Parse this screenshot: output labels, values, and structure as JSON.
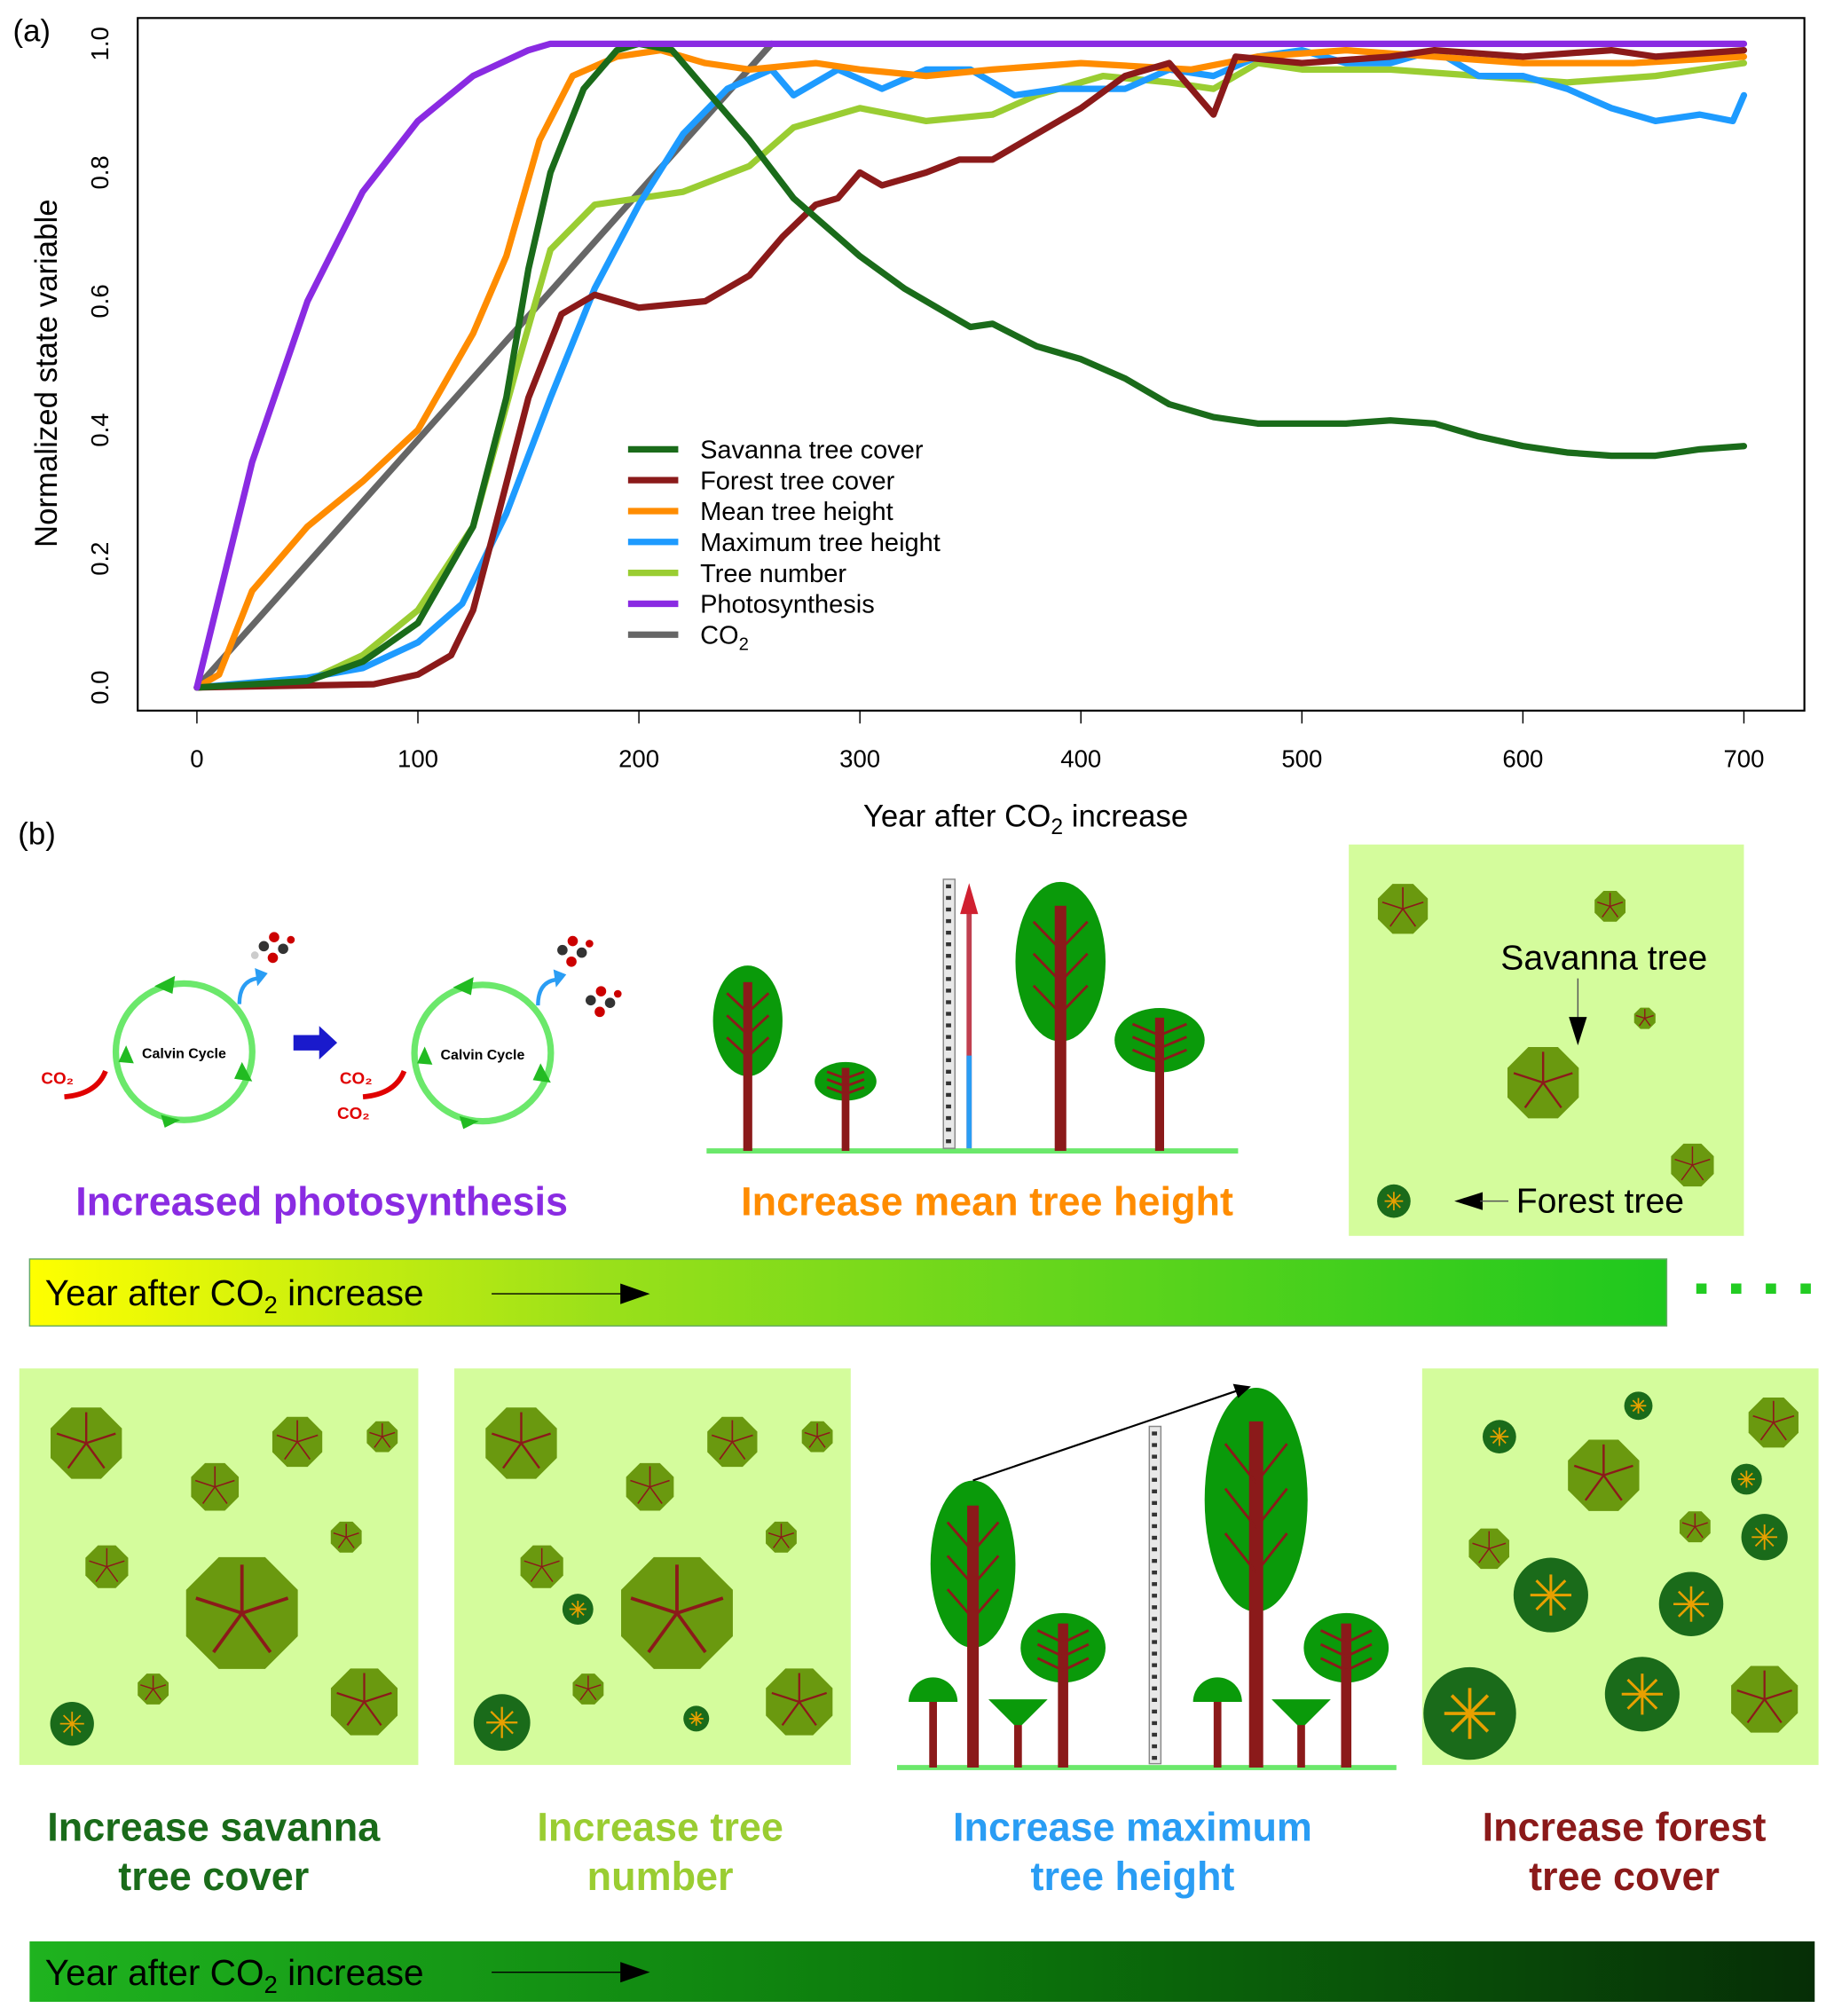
{
  "panel_labels": {
    "a": "(a)",
    "b": "(b)"
  },
  "chart_data": {
    "type": "line",
    "title": "",
    "xlabel": {
      "pre": "Year after CO",
      "sub": "2",
      "post": " increase"
    },
    "ylabel": "Normalized state variable",
    "xlim": [
      0,
      700
    ],
    "ylim": [
      0,
      1
    ],
    "xticks": [
      0,
      100,
      200,
      300,
      400,
      500,
      600,
      700
    ],
    "xtick_labels": [
      "0",
      "100",
      "200",
      "300",
      "400",
      "500",
      "600",
      "700"
    ],
    "yticks": [
      0,
      0.2,
      0.4,
      0.6,
      0.8,
      1.0
    ],
    "ytick_labels": [
      "0.0",
      "0.2",
      "0.4",
      "0.6",
      "0.8",
      "1.0"
    ],
    "grid": false,
    "legend_position": "center",
    "series": [
      {
        "name": "Savanna tree cover",
        "color": "#1a6b1a",
        "x": [
          0,
          50,
          75,
          100,
          125,
          140,
          150,
          160,
          175,
          190,
          200,
          215,
          230,
          250,
          270,
          290,
          300,
          320,
          340,
          350,
          360,
          380,
          400,
          420,
          440,
          460,
          480,
          500,
          520,
          540,
          560,
          580,
          600,
          620,
          640,
          660,
          680,
          700
        ],
        "y": [
          0,
          0.01,
          0.04,
          0.1,
          0.25,
          0.45,
          0.65,
          0.8,
          0.93,
          0.99,
          1.0,
          0.99,
          0.93,
          0.85,
          0.76,
          0.7,
          0.67,
          0.62,
          0.58,
          0.56,
          0.565,
          0.53,
          0.51,
          0.48,
          0.44,
          0.42,
          0.41,
          0.41,
          0.41,
          0.415,
          0.41,
          0.39,
          0.375,
          0.365,
          0.36,
          0.36,
          0.37,
          0.375
        ]
      },
      {
        "name": "Forest tree cover",
        "color": "#8b1a1a",
        "x": [
          0,
          80,
          100,
          115,
          125,
          135,
          150,
          165,
          180,
          200,
          230,
          250,
          265,
          280,
          290,
          300,
          310,
          330,
          345,
          360,
          380,
          400,
          420,
          440,
          450,
          460,
          470,
          500,
          540,
          560,
          600,
          640,
          660,
          700
        ],
        "y": [
          0,
          0.005,
          0.02,
          0.05,
          0.12,
          0.25,
          0.45,
          0.58,
          0.61,
          0.59,
          0.6,
          0.64,
          0.7,
          0.75,
          0.76,
          0.8,
          0.78,
          0.8,
          0.82,
          0.82,
          0.86,
          0.9,
          0.95,
          0.97,
          0.93,
          0.89,
          0.98,
          0.97,
          0.98,
          0.99,
          0.98,
          0.99,
          0.98,
          0.99
        ]
      },
      {
        "name": "Mean tree height",
        "color": "#ff8c00",
        "x": [
          0,
          10,
          25,
          50,
          75,
          100,
          125,
          140,
          155,
          170,
          190,
          210,
          230,
          250,
          280,
          300,
          330,
          360,
          400,
          450,
          480,
          520,
          560,
          600,
          650,
          700
        ],
        "y": [
          0,
          0.02,
          0.15,
          0.25,
          0.32,
          0.4,
          0.55,
          0.67,
          0.85,
          0.95,
          0.98,
          0.99,
          0.97,
          0.96,
          0.97,
          0.96,
          0.95,
          0.96,
          0.97,
          0.96,
          0.98,
          0.99,
          0.98,
          0.97,
          0.97,
          0.98
        ]
      },
      {
        "name": "Maximum tree height",
        "color": "#1e9bff",
        "x": [
          0,
          50,
          75,
          100,
          120,
          140,
          160,
          180,
          200,
          220,
          240,
          260,
          270,
          290,
          310,
          330,
          350,
          370,
          390,
          420,
          440,
          460,
          480,
          500,
          520,
          540,
          560,
          580,
          600,
          620,
          640,
          660,
          680,
          695,
          700
        ],
        "y": [
          0,
          0.015,
          0.03,
          0.07,
          0.13,
          0.27,
          0.45,
          0.62,
          0.75,
          0.86,
          0.93,
          0.96,
          0.92,
          0.96,
          0.93,
          0.96,
          0.96,
          0.92,
          0.93,
          0.93,
          0.96,
          0.95,
          0.98,
          0.99,
          0.97,
          0.97,
          0.99,
          0.95,
          0.95,
          0.93,
          0.9,
          0.88,
          0.89,
          0.88,
          0.92
        ]
      },
      {
        "name": "Tree number",
        "color": "#9acd32",
        "x": [
          0,
          50,
          75,
          100,
          125,
          145,
          160,
          180,
          200,
          220,
          250,
          270,
          300,
          330,
          360,
          380,
          410,
          440,
          460,
          480,
          500,
          540,
          580,
          620,
          660,
          700
        ],
        "y": [
          0,
          0.01,
          0.05,
          0.12,
          0.25,
          0.5,
          0.68,
          0.75,
          0.76,
          0.77,
          0.81,
          0.87,
          0.9,
          0.88,
          0.89,
          0.92,
          0.95,
          0.94,
          0.93,
          0.97,
          0.96,
          0.96,
          0.95,
          0.94,
          0.95,
          0.97
        ]
      },
      {
        "name": "Photosynthesis",
        "color": "#8a2be2",
        "x": [
          0,
          25,
          50,
          75,
          100,
          125,
          150,
          160,
          700
        ],
        "y": [
          0,
          0.35,
          0.6,
          0.77,
          0.88,
          0.95,
          0.99,
          1.0,
          1.0
        ]
      },
      {
        "name": "CO",
        "name_sub": "2",
        "color": "#666666",
        "x": [
          0,
          260
        ],
        "y": [
          0,
          1.0
        ]
      }
    ]
  },
  "diagram": {
    "calvin_label": "Calvin Cycle",
    "co2": "CO₂",
    "caption_photosynthesis": "Increased photosynthesis",
    "caption_mean_height": "Increase mean tree height",
    "legend_savanna_tree": "Savanna tree",
    "legend_forest_tree": "Forest tree",
    "timeline": {
      "pre": "Year after CO",
      "sub": "2",
      "post": " increase"
    },
    "captions_row2": [
      {
        "line1": "Increase savanna",
        "line2": "tree cover",
        "color": "#1a6b1a"
      },
      {
        "line1": "Increase tree",
        "line2": "number",
        "color": "#9acd32"
      },
      {
        "line1": "Increase maximum",
        "line2": "tree height",
        "color": "#2a9df4"
      },
      {
        "line1": "Increase forest",
        "line2": "tree cover",
        "color": "#8b1a1a"
      }
    ],
    "colors": {
      "purple": "#8a2be2",
      "orange": "#ff8c00",
      "panel_bg": "#d4fc9c",
      "savanna": "#6a990f",
      "forest": "#1a6b1a",
      "trunk": "#8b1a1a",
      "canopy": "#0a9a0a"
    }
  }
}
